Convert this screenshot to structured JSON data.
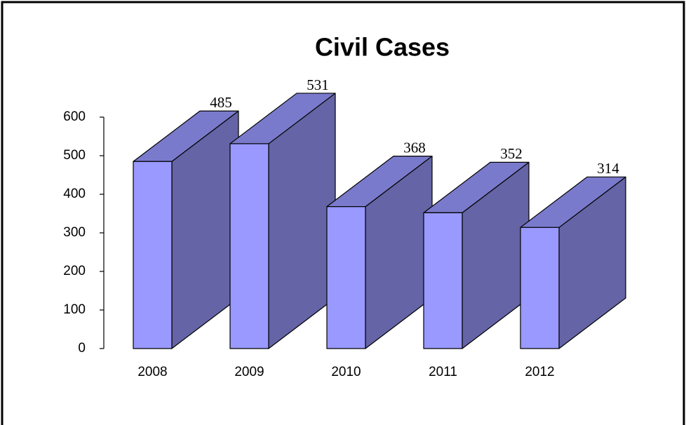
{
  "chart_data": {
    "type": "bar3d",
    "title": "Civil Cases",
    "categories": [
      "2008",
      "2009",
      "2010",
      "2011",
      "2012"
    ],
    "values": [
      485,
      531,
      368,
      352,
      314
    ],
    "colors": {
      "front": "#9999ff",
      "top": "#7a7acc",
      "side": "#6464a6"
    },
    "ylim": [
      0,
      600
    ],
    "yticks": [
      0,
      100,
      200,
      300,
      400,
      500,
      600
    ]
  }
}
